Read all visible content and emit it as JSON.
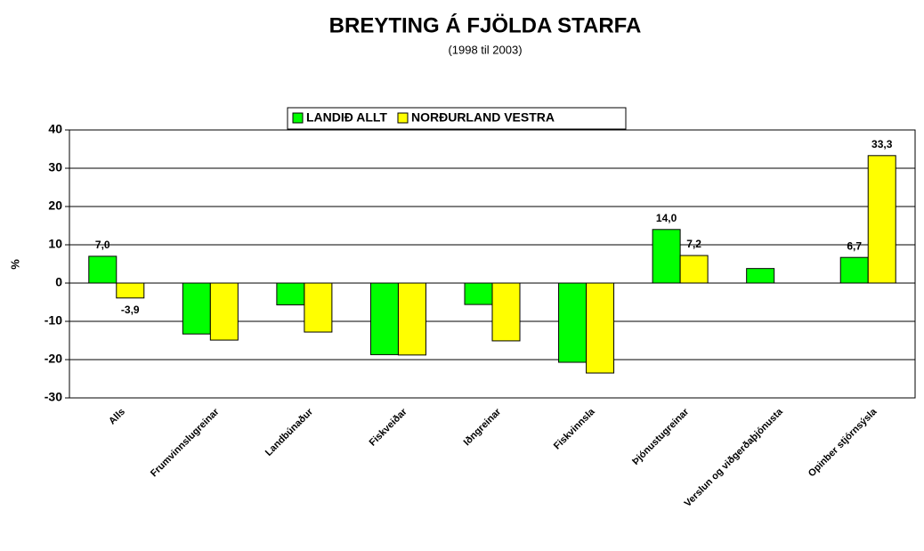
{
  "chart_data": {
    "type": "bar",
    "title": "BREYTING Á FJÖLDA STARFA",
    "subtitle": "(1998 til 2003)",
    "y_label": "%",
    "categories": [
      "Alls",
      "Frumvinnslugreinar",
      "Landbúnaður",
      "Fiskveiðar",
      "Iðngreinar",
      "Fiskvinnsla",
      "Þjónustugreinar",
      "Verslun og viðgerðaþjónusta",
      "Opinber stjórnsýsla"
    ],
    "series": [
      {
        "name": "LANDIÐ ALLT",
        "color": "#00ff00",
        "values": [
          7.0,
          -13.3,
          -5.7,
          -18.7,
          -5.6,
          -20.7,
          14.0,
          3.8,
          6.7
        ],
        "value_labels": [
          "7,0",
          null,
          null,
          null,
          null,
          null,
          "14,0",
          null,
          "6,7"
        ]
      },
      {
        "name": "NORÐURLAND VESTRA",
        "color": "#ffff00",
        "values": [
          -3.9,
          -14.9,
          -12.8,
          -18.8,
          -15.1,
          -23.5,
          7.2,
          null,
          33.3
        ],
        "value_labels": [
          "-3,9",
          null,
          null,
          null,
          null,
          null,
          "7,2",
          null,
          "33,3"
        ]
      }
    ],
    "ylim": [
      -30,
      40
    ],
    "yticks": [
      -30,
      -20,
      -10,
      0,
      10,
      20,
      30,
      40
    ],
    "grid": true,
    "legend": "top"
  }
}
